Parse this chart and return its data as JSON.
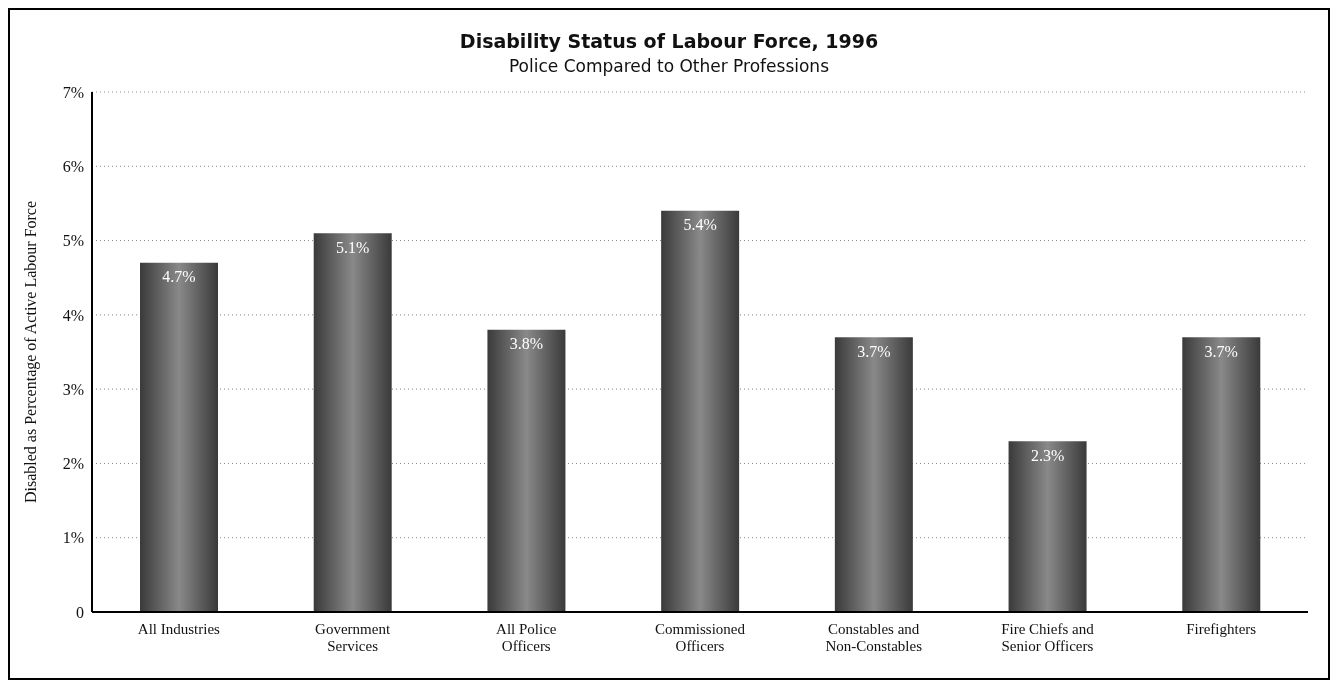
{
  "chart_data": {
    "type": "bar",
    "title": "Disability Status of Labour Force, 1996",
    "subtitle": "Police Compared to Other Professions",
    "ylabel": "Disabled as Percentage of Active Labour Force",
    "categories": [
      "All Industries",
      "Government Services",
      "All Police Officers",
      "Commissioned Officers",
      "Constables and Non-Constables",
      "Fire Chiefs and Senior Officers",
      "Firefighters"
    ],
    "values": [
      4.7,
      5.1,
      3.8,
      5.4,
      3.7,
      2.3,
      3.7
    ],
    "value_labels": [
      "4.7%",
      "5.1%",
      "3.8%",
      "5.4%",
      "3.7%",
      "2.3%",
      "3.7%"
    ],
    "color": "#3a3a3a",
    "ylim": [
      0,
      7
    ],
    "yticks": [
      {
        "value": 0,
        "label": "0"
      },
      {
        "value": 1,
        "label": "1%"
      },
      {
        "value": 2,
        "label": "2%"
      },
      {
        "value": 3,
        "label": "3%"
      },
      {
        "value": 4,
        "label": "4%"
      },
      {
        "value": 5,
        "label": "5%"
      },
      {
        "value": 6,
        "label": "6%"
      },
      {
        "value": 7,
        "label": "7%"
      }
    ],
    "grid": "y"
  }
}
